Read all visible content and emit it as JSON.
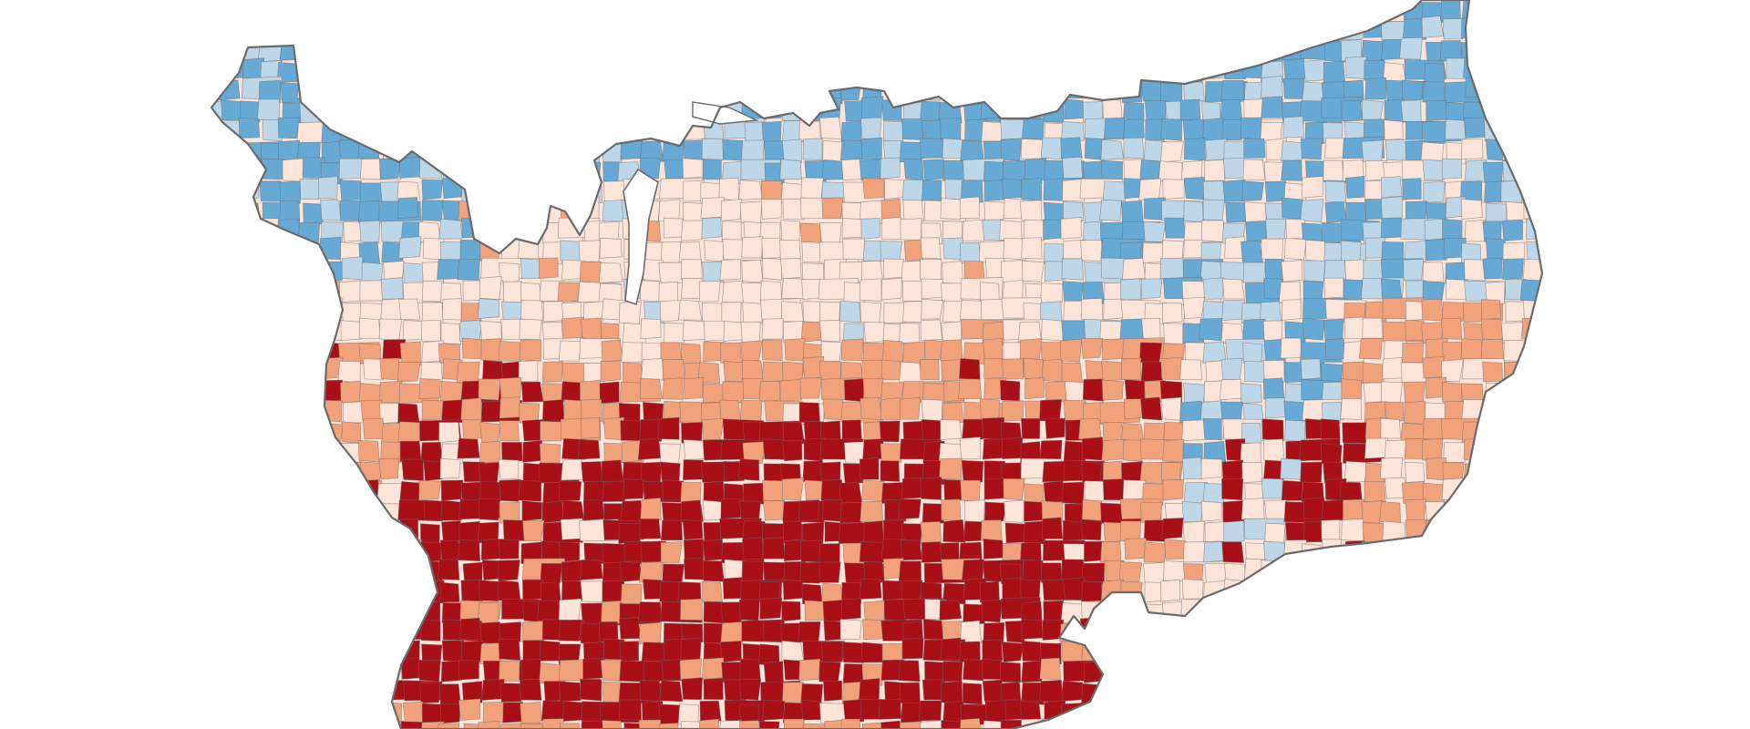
{
  "map": {
    "type": "choropleth",
    "region": "contiguous-united-states-counties",
    "classes": [
      {
        "id": "strong-blue",
        "color": "#67a9d5"
      },
      {
        "id": "light-blue",
        "color": "#bdd7e8"
      },
      {
        "id": "light-salmon",
        "color": "#fde4d8"
      },
      {
        "id": "salmon",
        "color": "#f2a27b"
      },
      {
        "id": "dark-red",
        "color": "#a80f17"
      }
    ],
    "border_color": "#6b6b6b"
  }
}
